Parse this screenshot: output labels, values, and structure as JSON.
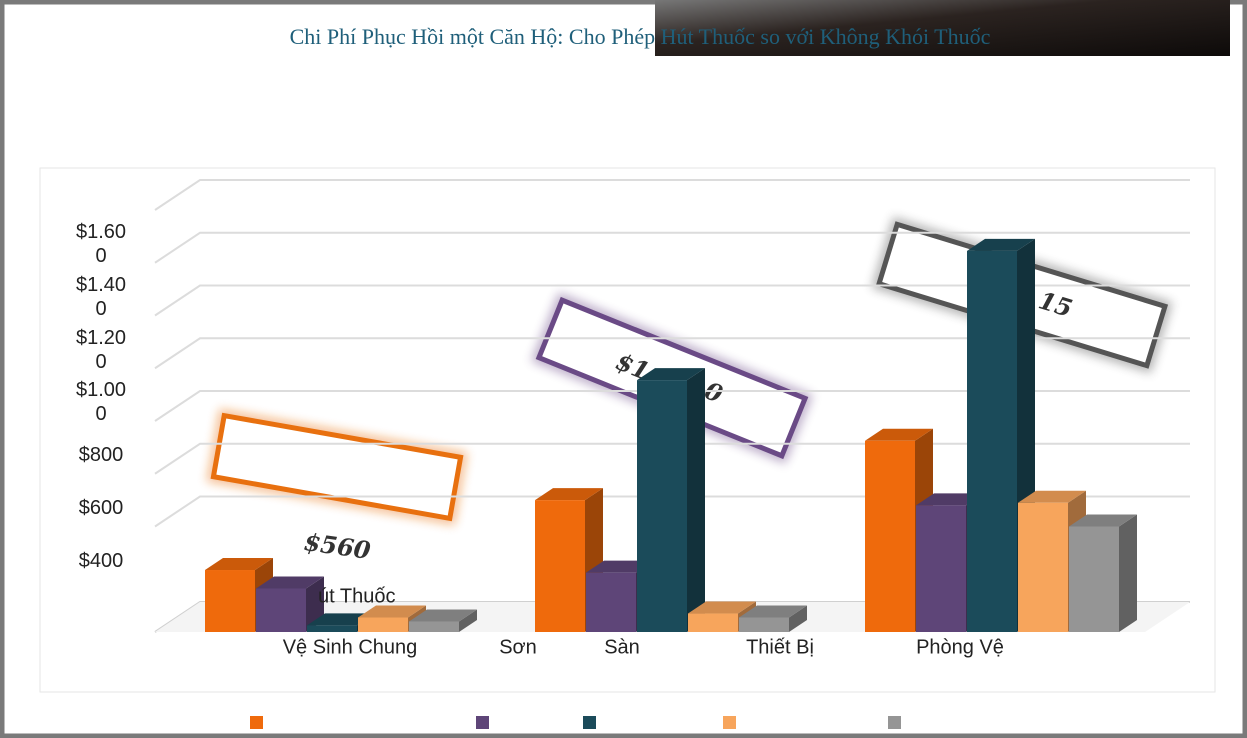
{
  "chart_data": {
    "type": "bar3d",
    "title": "Chi Phí Phục Hồi một Căn Hộ: Cho Phép Hút Thuốc so với Không Khói Thuốc",
    "x_labels": [
      "Vệ Sinh Chung",
      "Sơn",
      "Sàn",
      "Thiết Bị",
      "Phòng Vệ"
    ],
    "category_fragment": "út Thuốc",
    "series": [
      {
        "color": "#ef6a0c",
        "values": [
          235,
          500,
          725
        ]
      },
      {
        "color": "#5e4578",
        "values": [
          165,
          225,
          480
        ]
      },
      {
        "color": "#1b4b5a",
        "values": [
          25,
          955,
          1445
        ]
      },
      {
        "color": "#f7a55c",
        "values": [
          55,
          70,
          490
        ]
      },
      {
        "color": "#959595",
        "values": [
          40,
          55,
          400
        ]
      }
    ],
    "ylim": [
      0,
      1600
    ],
    "yticks": [
      {
        "value": 400,
        "label": "$400"
      },
      {
        "value": 600,
        "label": "$600"
      },
      {
        "value": 800,
        "label": "$800"
      },
      {
        "value": 1000,
        "label": "$1.000"
      },
      {
        "value": 1200,
        "label": "$1.200"
      },
      {
        "value": 1400,
        "label": "$1.400"
      },
      {
        "value": 1600,
        "label": "$1.600"
      }
    ],
    "grid": true,
    "annotations": [
      "$560",
      "$1",
      "0",
      "15"
    ]
  }
}
